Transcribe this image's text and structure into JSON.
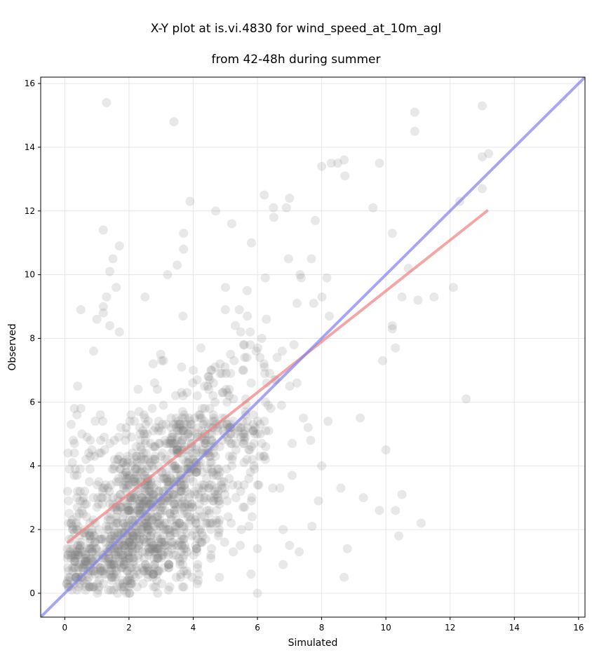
{
  "chart_data": {
    "type": "scatter",
    "title_line1": "X-Y plot at is.vi.4830 for wind_speed_at_10m_agl",
    "title_line2": "from 42-48h during summer",
    "xlabel": "Simulated",
    "ylabel": "Observed",
    "xlim": [
      -0.75,
      16.2
    ],
    "ylim": [
      -0.75,
      16.2
    ],
    "xticks": [
      "0",
      "2",
      "4",
      "6",
      "8",
      "10",
      "12",
      "14",
      "16"
    ],
    "yticks": [
      "0",
      "2",
      "4",
      "6",
      "8",
      "10",
      "12",
      "14",
      "16"
    ],
    "grid": true,
    "points_color": "#808080",
    "points_opacity": 0.18,
    "approx_point_count": 1450,
    "outliers": [
      [
        1.3,
        15.4
      ],
      [
        3.4,
        14.8
      ],
      [
        10.9,
        15.1
      ],
      [
        10.9,
        14.5
      ],
      [
        13.0,
        15.3
      ],
      [
        13.0,
        13.7
      ],
      [
        13.2,
        13.8
      ],
      [
        13.0,
        12.7
      ],
      [
        12.3,
        12.3
      ],
      [
        12.1,
        9.6
      ],
      [
        11.5,
        9.3
      ],
      [
        12.5,
        6.1
      ],
      [
        11.1,
        2.2
      ],
      [
        10.4,
        1.8
      ],
      [
        10.5,
        3.1
      ],
      [
        10.0,
        4.5
      ],
      [
        10.3,
        2.6
      ],
      [
        9.8,
        2.6
      ],
      [
        9.3,
        3.0
      ],
      [
        8.7,
        0.5
      ],
      [
        8.8,
        1.4
      ],
      [
        8.6,
        3.3
      ],
      [
        7.7,
        2.1
      ],
      [
        7.9,
        2.9
      ],
      [
        8.0,
        4.0
      ],
      [
        7.3,
        1.3
      ],
      [
        7.0,
        1.5
      ],
      [
        6.8,
        0.9
      ],
      [
        6.0,
        0.0
      ],
      [
        5.8,
        0.6
      ],
      [
        6.0,
        1.4
      ],
      [
        6.8,
        2.0
      ],
      [
        1.2,
        11.4
      ],
      [
        1.5,
        10.5
      ],
      [
        1.7,
        10.9
      ],
      [
        1.4,
        10.1
      ],
      [
        3.9,
        12.3
      ],
      [
        3.7,
        11.3
      ],
      [
        4.7,
        12.0
      ],
      [
        5.2,
        11.6
      ],
      [
        0.5,
        8.9
      ],
      [
        0.9,
        7.6
      ],
      [
        1.0,
        8.6
      ],
      [
        1.2,
        9.0
      ],
      [
        1.2,
        8.8
      ],
      [
        1.3,
        9.3
      ],
      [
        1.4,
        8.4
      ],
      [
        1.7,
        8.2
      ],
      [
        1.6,
        9.6
      ],
      [
        2.5,
        9.3
      ],
      [
        3.2,
        10.0
      ],
      [
        3.5,
        10.3
      ],
      [
        3.7,
        10.8
      ],
      [
        11.0,
        9.2
      ],
      [
        10.7,
        10.2
      ],
      [
        10.2,
        11.3
      ],
      [
        10.2,
        8.3
      ],
      [
        9.8,
        13.5
      ],
      [
        9.6,
        12.1
      ],
      [
        8.7,
        13.6
      ],
      [
        8.5,
        13.5
      ],
      [
        8.3,
        13.5
      ],
      [
        8.0,
        13.4
      ],
      [
        7.8,
        11.7
      ],
      [
        7.0,
        12.4
      ],
      [
        6.9,
        12.1
      ],
      [
        6.5,
        12.1
      ],
      [
        10.3,
        7.7
      ],
      [
        10.2,
        8.4
      ],
      [
        10.5,
        9.3
      ],
      [
        9.9,
        7.3
      ],
      [
        9.2,
        5.5
      ],
      [
        0.2,
        5.3
      ],
      [
        0.3,
        5.8
      ],
      [
        0.4,
        6.5
      ],
      [
        0.5,
        5.8
      ],
      [
        0.3,
        4.7
      ],
      [
        0.3,
        4.4
      ],
      [
        0.3,
        3.7
      ],
      [
        0.4,
        3.2
      ],
      [
        0.2,
        2.2
      ],
      [
        0.4,
        1.5
      ],
      [
        0.3,
        1.0
      ],
      [
        0.4,
        0.6
      ]
    ],
    "dense_region_model": {
      "x_center_by_obs": "obs * 0.55 + 1.2",
      "fit_line": {
        "slope": 0.79,
        "intercept": 1.6,
        "x_range": [
          0.1,
          13.15
        ]
      }
    },
    "series": [
      {
        "name": "",
        "kind": "points"
      },
      {
        "name": "",
        "kind": "line",
        "role": "regression",
        "color": "#f08080",
        "x": [
          0.1,
          13.15
        ],
        "y": [
          1.6,
          12.0
        ]
      },
      {
        "name": "",
        "kind": "line",
        "role": "1:1",
        "color": "#8080f0",
        "x": [
          -0.75,
          16.2
        ],
        "y": [
          -0.75,
          16.2
        ]
      }
    ]
  }
}
